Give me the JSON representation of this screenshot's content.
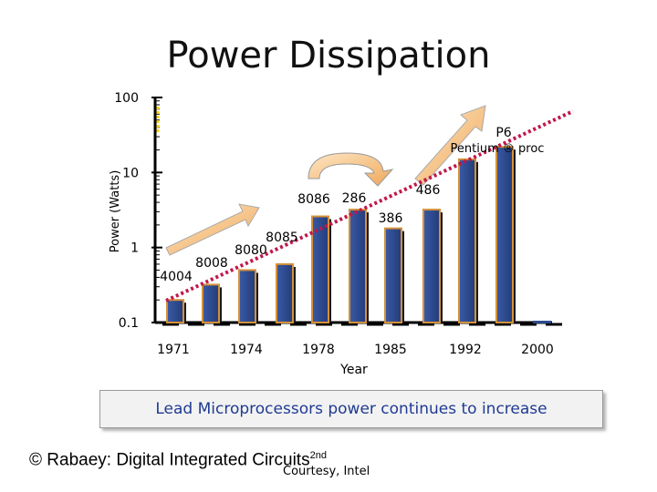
{
  "chart_data": {
    "type": "bar",
    "title": "Power Dissipation",
    "ylabel": "Power (Watts)",
    "xlabel": "Year",
    "yscale": "log",
    "ylim": [
      0.1,
      100
    ],
    "y_ticks": [
      {
        "value": 100,
        "label": "100"
      },
      {
        "value": 10,
        "label": "10"
      },
      {
        "value": 1,
        "label": "1"
      },
      {
        "value": 0.1,
        "label": "0.1"
      }
    ],
    "x_ticks": [
      "1971",
      "1974",
      "1978",
      "1985",
      "1992",
      "2000"
    ],
    "bars": [
      {
        "value": 0.2,
        "label": "4004"
      },
      {
        "value": 0.32,
        "label": "8008"
      },
      {
        "value": 0.5,
        "label": "8080"
      },
      {
        "value": 0.6,
        "label": "8085"
      },
      {
        "value": 2.6,
        "label": "8086"
      },
      {
        "value": 3.2,
        "label": "286"
      },
      {
        "value": 1.8,
        "label": "386"
      },
      {
        "value": 3.2,
        "label": "486"
      },
      {
        "value": 15,
        "label": ""
      },
      {
        "value": 22,
        "label": ""
      }
    ],
    "annotations": [
      {
        "text": "P6",
        "for": "bar-10"
      },
      {
        "text": "Pentium ® proc",
        "for": "bar-10"
      }
    ],
    "trend": "exponential increase (dotted trend line)"
  },
  "caption": "Lead Microprocessors power continues to increase",
  "footer": {
    "text": "© Rabaey: Digital Integrated Circuits",
    "sup": "2nd",
    "courtesy": "Courtesy, Intel"
  },
  "colors": {
    "bar_fill": "#2e4a8c",
    "bar_edge": "#d4913a",
    "trend_line": "#c0184a",
    "arrow_fill": "#f6c98a",
    "axis": "#000000"
  }
}
